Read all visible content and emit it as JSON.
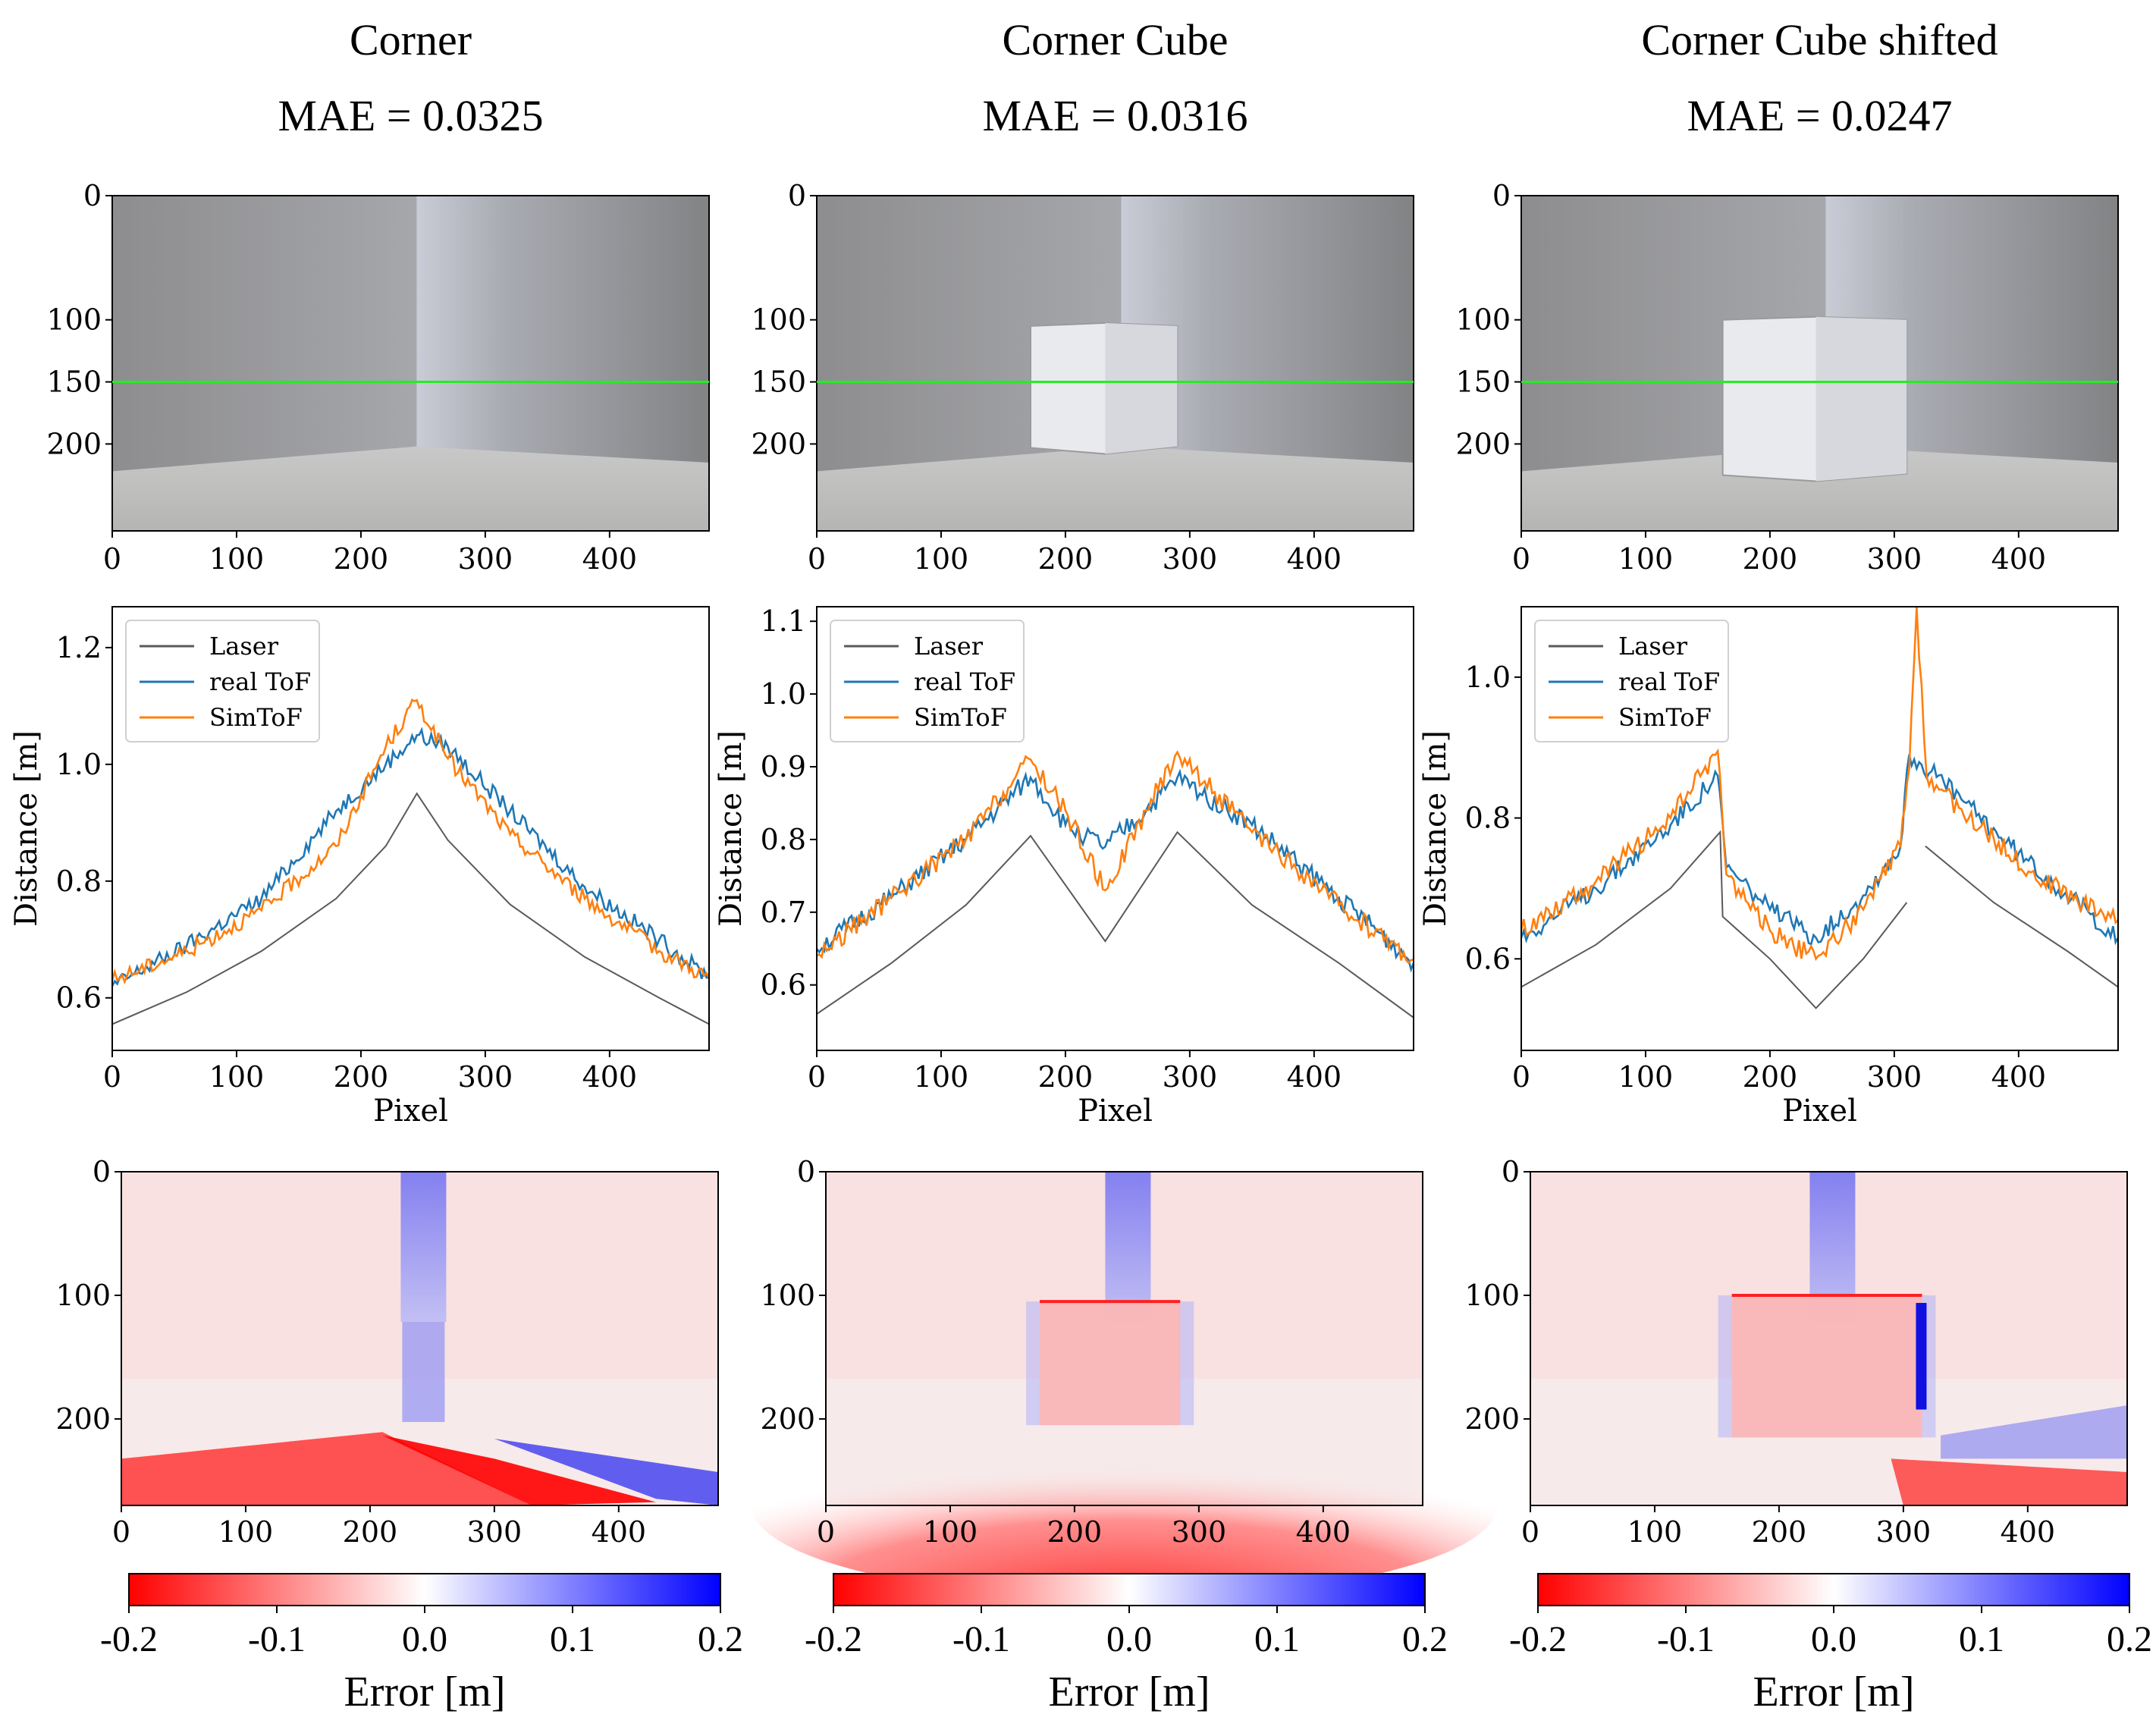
{
  "colors": {
    "laser": "#5a5a5a",
    "real_tof": "#1f77b4",
    "simtof": "#ff7f0e",
    "guide_line": "#22ee22",
    "err_neg": "#ff0000",
    "err_pos": "#0000ff"
  },
  "panels": [
    {
      "title": "Corner",
      "mae": "MAE = 0.0325",
      "photo": {
        "x_ticks": [
          "0",
          "100",
          "200",
          "300",
          "400"
        ],
        "y_ticks": [
          "0",
          "100",
          "150",
          "200"
        ],
        "guide_row": 150,
        "scene": "corner"
      },
      "chart_data": {
        "type": "line",
        "xlabel": "Pixel",
        "ylabel": "Distance [m]",
        "xlim": [
          0,
          480
        ],
        "ylim": [
          0.51,
          1.27
        ],
        "x_ticks": [
          "0",
          "100",
          "200",
          "300",
          "400"
        ],
        "y_ticks": [
          "0.6",
          "0.8",
          "1.0",
          "1.2"
        ],
        "legend": "top-left",
        "series": [
          {
            "name": "Laser",
            "points": [
              [
                0,
                0.555
              ],
              [
                60,
                0.61
              ],
              [
                120,
                0.68
              ],
              [
                180,
                0.77
              ],
              [
                220,
                0.86
              ],
              [
                245,
                0.95
              ],
              [
                270,
                0.87
              ],
              [
                320,
                0.76
              ],
              [
                380,
                0.67
              ],
              [
                440,
                0.6
              ],
              [
                480,
                0.555
              ]
            ]
          },
          {
            "name": "real ToF",
            "points": [
              [
                0,
                0.62
              ],
              [
                60,
                0.69
              ],
              [
                120,
                0.77
              ],
              [
                180,
                0.92
              ],
              [
                220,
                1.0
              ],
              [
                245,
                1.05
              ],
              [
                270,
                1.03
              ],
              [
                320,
                0.92
              ],
              [
                380,
                0.79
              ],
              [
                440,
                0.7
              ],
              [
                480,
                0.635
              ]
            ]
          },
          {
            "name": "SimToF",
            "points": [
              [
                0,
                0.63
              ],
              [
                60,
                0.68
              ],
              [
                120,
                0.75
              ],
              [
                180,
                0.86
              ],
              [
                220,
                1.03
              ],
              [
                245,
                1.11
              ],
              [
                270,
                1.01
              ],
              [
                320,
                0.88
              ],
              [
                380,
                0.77
              ],
              [
                440,
                0.68
              ],
              [
                480,
                0.635
              ]
            ]
          }
        ]
      },
      "error_map": {
        "x_ticks": [
          "0",
          "100",
          "200",
          "300",
          "400"
        ],
        "y_ticks": [
          "0",
          "100",
          "200"
        ],
        "colorbar_ticks": [
          "-0.2",
          "-0.1",
          "0.0",
          "0.1",
          "0.2"
        ],
        "colorbar_label": "Error [m]"
      }
    },
    {
      "title": "Corner Cube",
      "mae": "MAE = 0.0316",
      "photo": {
        "x_ticks": [
          "0",
          "100",
          "200",
          "300",
          "400"
        ],
        "y_ticks": [
          "0",
          "100",
          "150",
          "200"
        ],
        "guide_row": 150,
        "scene": "cube-center"
      },
      "chart_data": {
        "type": "line",
        "xlabel": "Pixel",
        "ylabel": "Distance [m]",
        "xlim": [
          0,
          480
        ],
        "ylim": [
          0.51,
          1.12
        ],
        "x_ticks": [
          "0",
          "100",
          "200",
          "300",
          "400"
        ],
        "y_ticks": [
          "0.6",
          "0.7",
          "0.8",
          "0.9",
          "1.0",
          "1.1"
        ],
        "legend": "top-left",
        "series": [
          {
            "name": "Laser",
            "points": [
              [
                0,
                0.56
              ],
              [
                60,
                0.63
              ],
              [
                120,
                0.71
              ],
              [
                172,
                0.805
              ],
              [
                232,
                0.66
              ],
              [
                290,
                0.81
              ],
              [
                350,
                0.71
              ],
              [
                420,
                0.63
              ],
              [
                480,
                0.555
              ]
            ]
          },
          {
            "name": "real ToF",
            "points": [
              [
                0,
                0.65
              ],
              [
                60,
                0.72
              ],
              [
                120,
                0.8
              ],
              [
                172,
                0.885
              ],
              [
                200,
                0.82
              ],
              [
                232,
                0.79
              ],
              [
                265,
                0.84
              ],
              [
                290,
                0.885
              ],
              [
                350,
                0.82
              ],
              [
                420,
                0.72
              ],
              [
                480,
                0.63
              ]
            ]
          },
          {
            "name": "SimToF",
            "points": [
              [
                0,
                0.64
              ],
              [
                60,
                0.72
              ],
              [
                120,
                0.8
              ],
              [
                172,
                0.91
              ],
              [
                200,
                0.84
              ],
              [
                232,
                0.73
              ],
              [
                265,
                0.84
              ],
              [
                290,
                0.92
              ],
              [
                350,
                0.81
              ],
              [
                420,
                0.71
              ],
              [
                480,
                0.635
              ]
            ]
          }
        ]
      },
      "error_map": {
        "x_ticks": [
          "0",
          "100",
          "200",
          "300",
          "400"
        ],
        "y_ticks": [
          "0",
          "100",
          "200"
        ],
        "colorbar_ticks": [
          "-0.2",
          "-0.1",
          "0.0",
          "0.1",
          "0.2"
        ],
        "colorbar_label": "Error [m]"
      }
    },
    {
      "title": "Corner Cube shifted",
      "mae": "MAE = 0.0247",
      "photo": {
        "x_ticks": [
          "0",
          "100",
          "200",
          "300",
          "400"
        ],
        "y_ticks": [
          "0",
          "100",
          "150",
          "200"
        ],
        "guide_row": 150,
        "scene": "cube-shifted"
      },
      "chart_data": {
        "type": "line",
        "xlabel": "Pixel",
        "ylabel": "Distance [m]",
        "xlim": [
          0,
          480
        ],
        "ylim": [
          0.47,
          1.1
        ],
        "x_ticks": [
          "0",
          "100",
          "200",
          "300",
          "400"
        ],
        "y_ticks": [
          "0.6",
          "0.8",
          "1.0"
        ],
        "legend": "top-left",
        "series": [
          {
            "name": "Laser",
            "points": [
              [
                0,
                0.56
              ],
              [
                60,
                0.62
              ],
              [
                120,
                0.7
              ],
              [
                160,
                0.78
              ],
              [
                162,
                0.66
              ],
              [
                200,
                0.6
              ],
              [
                237,
                0.53
              ],
              [
                275,
                0.6
              ],
              [
                310,
                0.68
              ],
              null,
              [
                325,
                0.76
              ],
              [
                380,
                0.68
              ],
              [
                440,
                0.61
              ],
              [
                480,
                0.56
              ]
            ]
          },
          {
            "name": "real ToF",
            "points": [
              [
                0,
                0.63
              ],
              [
                60,
                0.7
              ],
              [
                120,
                0.79
              ],
              [
                158,
                0.86
              ],
              [
                165,
                0.73
              ],
              [
                200,
                0.67
              ],
              [
                237,
                0.63
              ],
              [
                275,
                0.69
              ],
              [
                305,
                0.76
              ],
              [
                312,
                0.89
              ],
              [
                340,
                0.85
              ],
              [
                400,
                0.75
              ],
              [
                480,
                0.63
              ]
            ]
          },
          {
            "name": "SimToF",
            "points": [
              [
                0,
                0.64
              ],
              [
                60,
                0.71
              ],
              [
                120,
                0.8
              ],
              [
                158,
                0.895
              ],
              [
                165,
                0.72
              ],
              [
                200,
                0.64
              ],
              [
                237,
                0.6
              ],
              [
                275,
                0.67
              ],
              [
                305,
                0.76
              ],
              [
                312,
                0.87
              ],
              [
                318,
                1.1
              ],
              [
                326,
                0.86
              ],
              [
                360,
                0.8
              ],
              [
                420,
                0.71
              ],
              [
                480,
                0.655
              ]
            ]
          }
        ]
      },
      "error_map": {
        "x_ticks": [
          "0",
          "100",
          "200",
          "300",
          "400"
        ],
        "y_ticks": [
          "0",
          "100",
          "200"
        ],
        "colorbar_ticks": [
          "-0.2",
          "-0.1",
          "0.0",
          "0.1",
          "0.2"
        ],
        "colorbar_label": "Error [m]"
      }
    }
  ]
}
